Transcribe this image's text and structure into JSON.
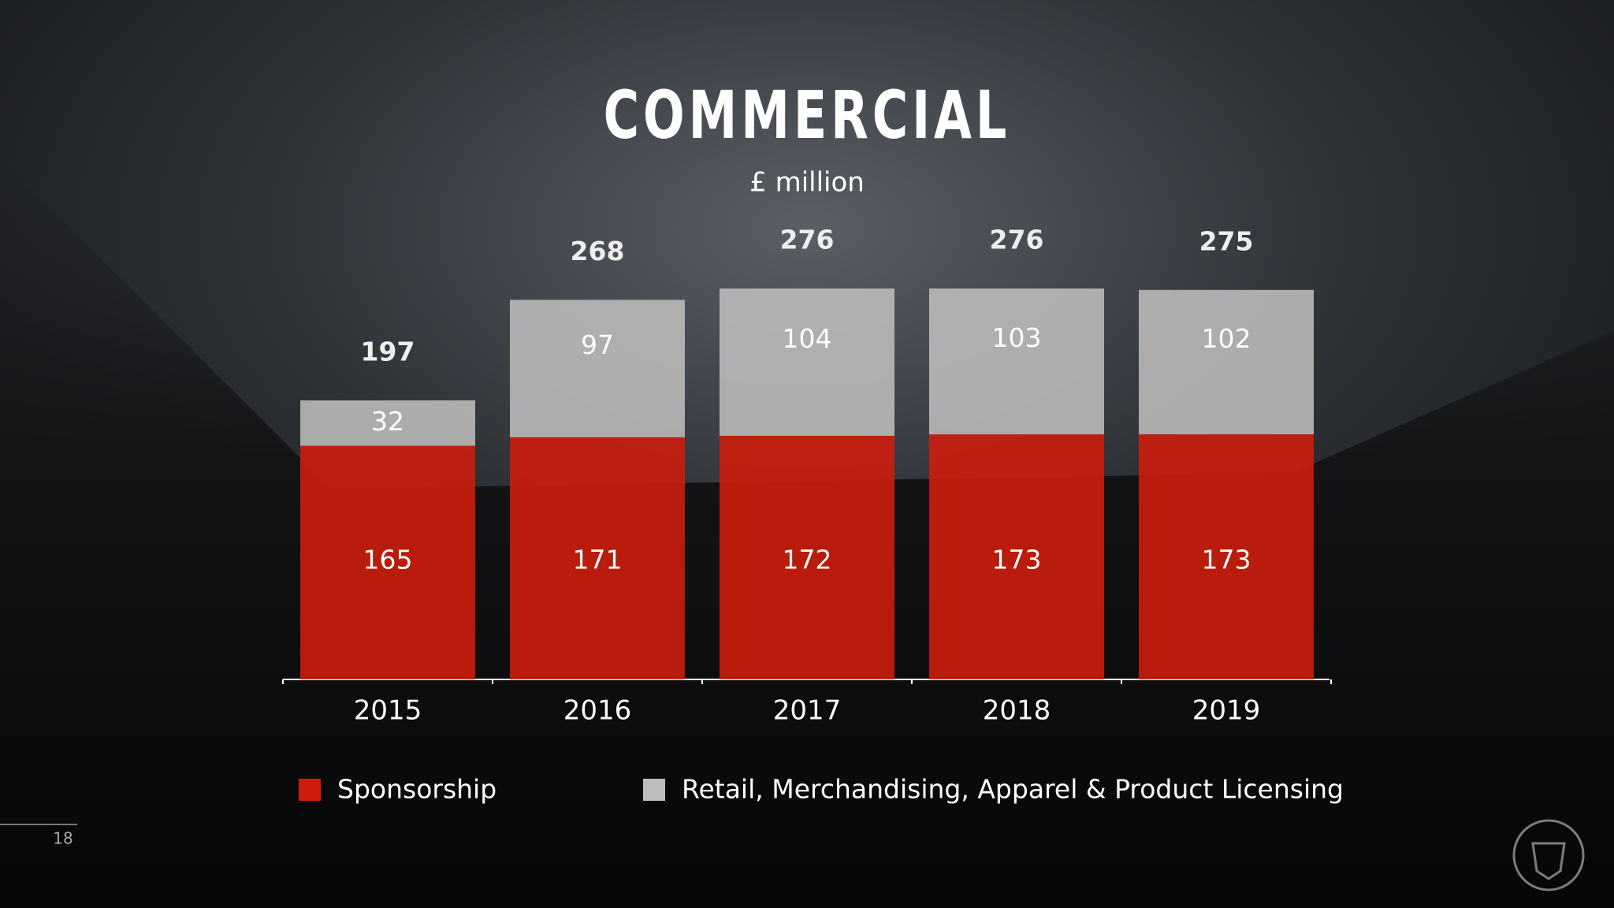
{
  "chart_data": {
    "type": "stacked_bar",
    "title": "COMMERCIAL",
    "subtitle": "£ million",
    "categories": [
      "2015",
      "2016",
      "2017",
      "2018",
      "2019"
    ],
    "series": [
      {
        "name": "Sponsorship",
        "color": "#d01d0b",
        "values": [
          165,
          171,
          172,
          173,
          173
        ]
      },
      {
        "name": "Retail, Merchandising, Apparel & Product Licensing",
        "color": "#bdbdbd",
        "values": [
          32,
          97,
          104,
          103,
          102
        ]
      }
    ],
    "totals": [
      197,
      268,
      276,
      276,
      275
    ],
    "legend": "bottom"
  },
  "page_number": "18"
}
